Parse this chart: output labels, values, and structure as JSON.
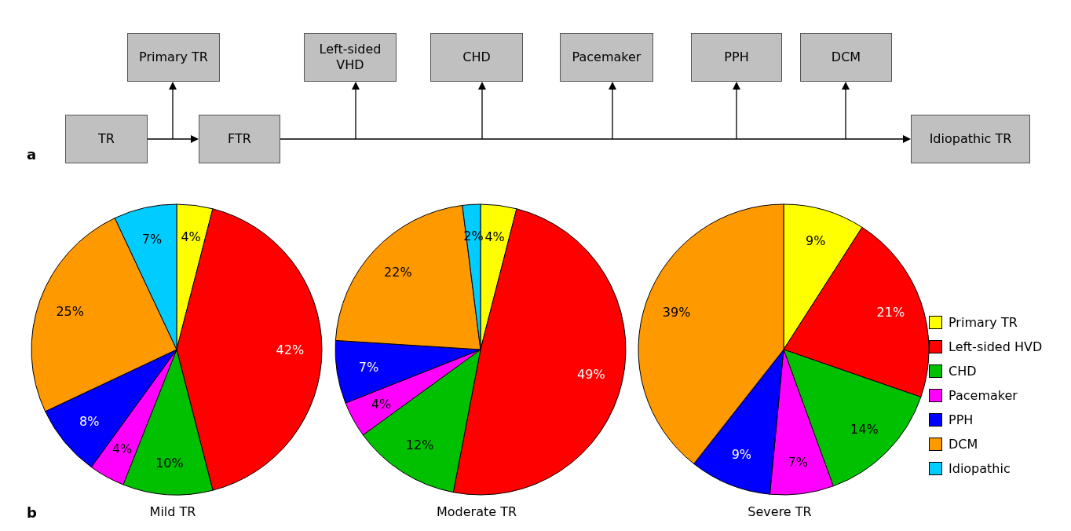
{
  "chart_data": [
    {
      "type": "other",
      "annotations": [
        "a",
        "TR",
        "Primary TR",
        "FTR",
        "Left-sided VHD",
        "CHD",
        "Pacemaker",
        "PPH",
        "DCM",
        "Idiopathic TR"
      ]
    },
    {
      "type": "pie",
      "title": "Mild TR",
      "annotations": [
        "b"
      ],
      "categories": [
        null,
        null,
        null,
        null,
        null,
        null,
        null
      ],
      "values": [
        4,
        42,
        10,
        4,
        8,
        25,
        7
      ],
      "value_labels": [
        "4%",
        "42%",
        "10%",
        "4%",
        "8%",
        "25%",
        "7%"
      ],
      "colors": [
        "#ffff00",
        "#ff0000",
        "#00c000",
        "#ff00ff",
        "#0000ff",
        "#ff9900",
        "#00ccff"
      ]
    },
    {
      "type": "pie",
      "title": "Moderate TR",
      "categories": [
        null,
        null,
        null,
        null,
        null,
        null,
        null
      ],
      "values": [
        4,
        49,
        12,
        4,
        7,
        22,
        2
      ],
      "value_labels": [
        "4%",
        "49%",
        "12%",
        "4%",
        "7%",
        "22%",
        "2%"
      ],
      "colors": [
        "#ffff00",
        "#ff0000",
        "#00c000",
        "#ff00ff",
        "#0000ff",
        "#ff9900",
        "#00ccff"
      ]
    },
    {
      "type": "pie",
      "title": "Severe TR",
      "legend": "right",
      "categories": [
        "Primary TR",
        "Left-sided HVD",
        "CHD",
        "Pacemaker",
        "PPH",
        "DCM",
        "Idiopathic"
      ],
      "values": [
        9,
        21,
        14,
        7,
        9,
        39,
        0
      ],
      "value_labels": [
        "9%",
        "21%",
        "14%",
        "7%",
        "9%",
        "39%",
        null
      ],
      "colors": [
        "#ffff00",
        "#ff0000",
        "#00c000",
        "#ff00ff",
        "#0000ff",
        "#ff9900",
        "#00ccff"
      ]
    }
  ]
}
